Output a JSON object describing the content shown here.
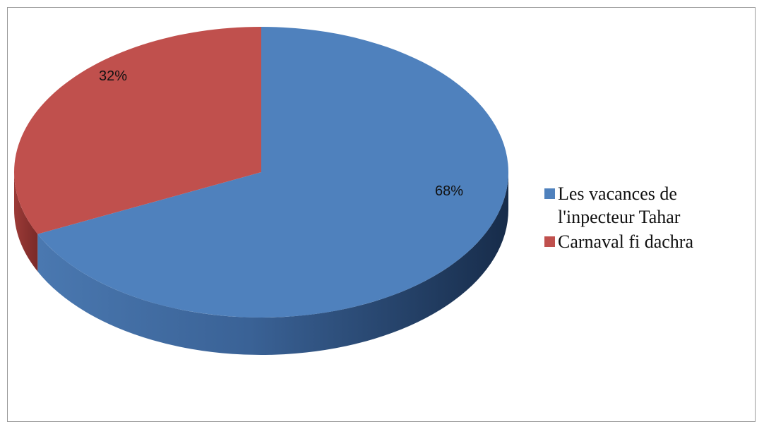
{
  "chart_data": {
    "type": "pie",
    "style": "3d",
    "title": "",
    "slices": [
      {
        "label": "Les vacances de l'inpecteur Tahar",
        "value": 68,
        "value_label": "68%",
        "color": "#4F81BD"
      },
      {
        "label": "Carnaval fi dachra",
        "value": 32,
        "value_label": "32%",
        "color": "#C0504D"
      }
    ],
    "legend_position": "right"
  }
}
